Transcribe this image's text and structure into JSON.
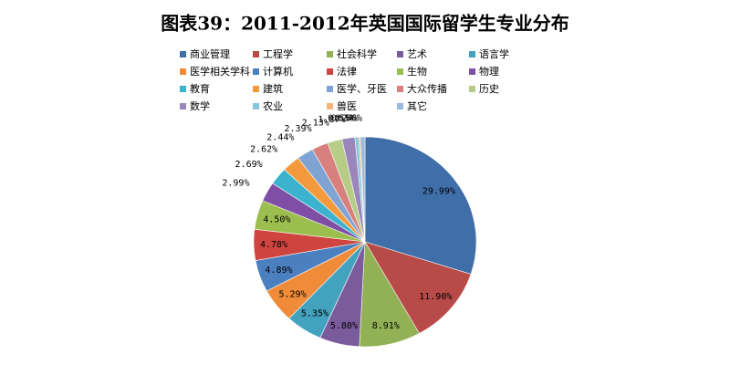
{
  "chart_data": {
    "type": "pie",
    "title": "图表39：2011-2012年英国国际留学生专业分布",
    "categories": [
      "商业管理",
      "工程学",
      "社会科学",
      "艺术",
      "语言学",
      "医学相关学科",
      "计算机",
      "法律",
      "生物",
      "物理",
      "教育",
      "建筑",
      "医学、牙医",
      "大众传播",
      "历史",
      "数学",
      "农业",
      "兽医",
      "其它"
    ],
    "values": [
      29.99,
      11.9,
      8.91,
      5.8,
      5.35,
      5.29,
      4.89,
      4.78,
      4.5,
      2.99,
      2.69,
      2.62,
      2.44,
      2.39,
      2.13,
      1.87,
      0.55,
      0.24,
      0.66
    ],
    "value_labels": [
      "29.99%",
      "11.90%",
      "8.91%",
      "5.80%",
      "5.35%",
      "5.29%",
      "4.89%",
      "4.78%",
      "4.50%",
      "2.99%",
      "2.69%",
      "2.62%",
      "2.44%",
      "2.39%",
      "2.13%",
      "1.87%",
      "0.55%",
      "0.24%",
      "0.66%"
    ],
    "colors": [
      "#3f6ea8",
      "#b84a47",
      "#91b154",
      "#7a5c9c",
      "#43a2bd",
      "#f08b3a",
      "#4a7fc0",
      "#d0443f",
      "#9cbe4f",
      "#7f4fa5",
      "#3bb3cf",
      "#f39a3f",
      "#7fa3d3",
      "#d7807d",
      "#b7cc87",
      "#9b86bb",
      "#84c7dc",
      "#f6b479",
      "#9db8dd"
    ],
    "legend": "top"
  }
}
